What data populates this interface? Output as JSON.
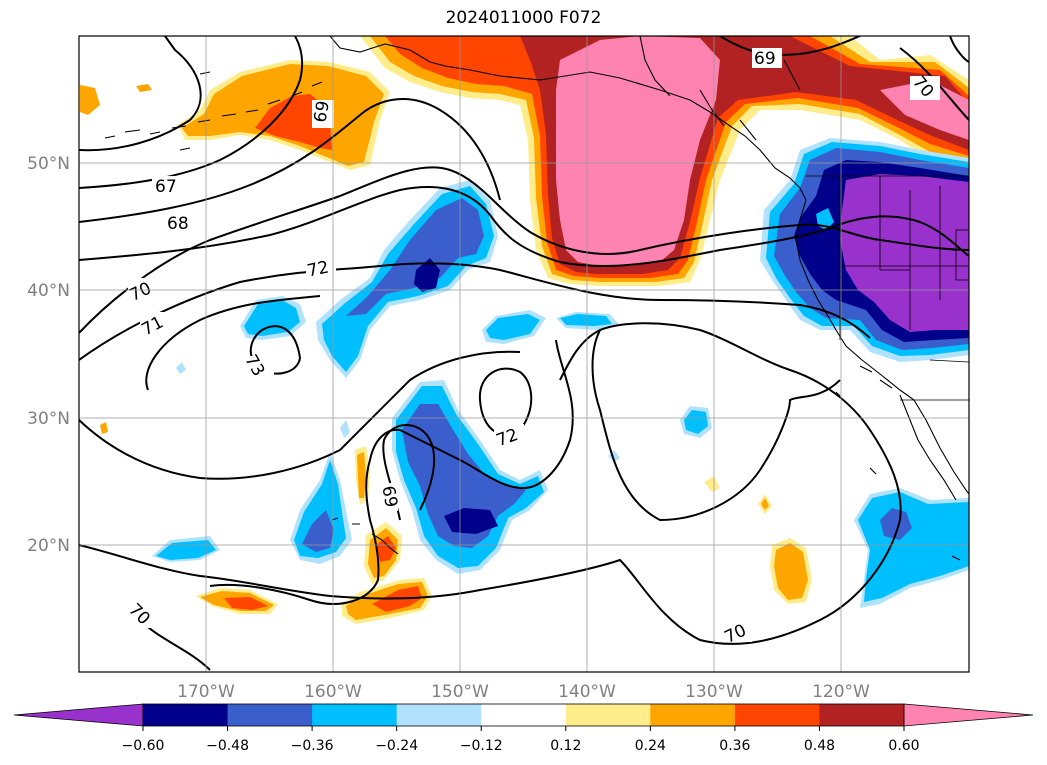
{
  "title": "2024011000 F072",
  "lat_labels": [
    "50°N",
    "40°N",
    "30°N",
    "20°N"
  ],
  "lon_labels": [
    "170°W",
    "160°W",
    "150°W",
    "140°W",
    "130°W",
    "120°W"
  ],
  "contour_labels": [
    "67",
    "68",
    "69",
    "70",
    "71",
    "72",
    "73",
    "69",
    "69",
    "70",
    "70",
    "70",
    "72"
  ],
  "colorbar": {
    "ticks": [
      "−0.60",
      "−0.48",
      "−0.36",
      "−0.24",
      "−0.12",
      "0.12",
      "0.24",
      "0.36",
      "0.48",
      "0.60"
    ],
    "colors": [
      "#9932cc",
      "#00008b",
      "#3a5fcd",
      "#00bfff",
      "#b0e2ff",
      "#ffffff",
      "#ffec8b",
      "#ffa500",
      "#ff4500",
      "#b22222",
      "#ff83b0",
      "#ff83b0"
    ]
  },
  "colors": {
    "purple": "#9932cc",
    "navy": "#00008b",
    "blue": "#3a5fcd",
    "cyan": "#00bfff",
    "lightblue": "#b0e2ff",
    "lightyellow": "#ffec8b",
    "orange": "#ffa500",
    "redorange": "#ff4500",
    "firebrick": "#b22222",
    "pink": "#ff83b0"
  }
}
